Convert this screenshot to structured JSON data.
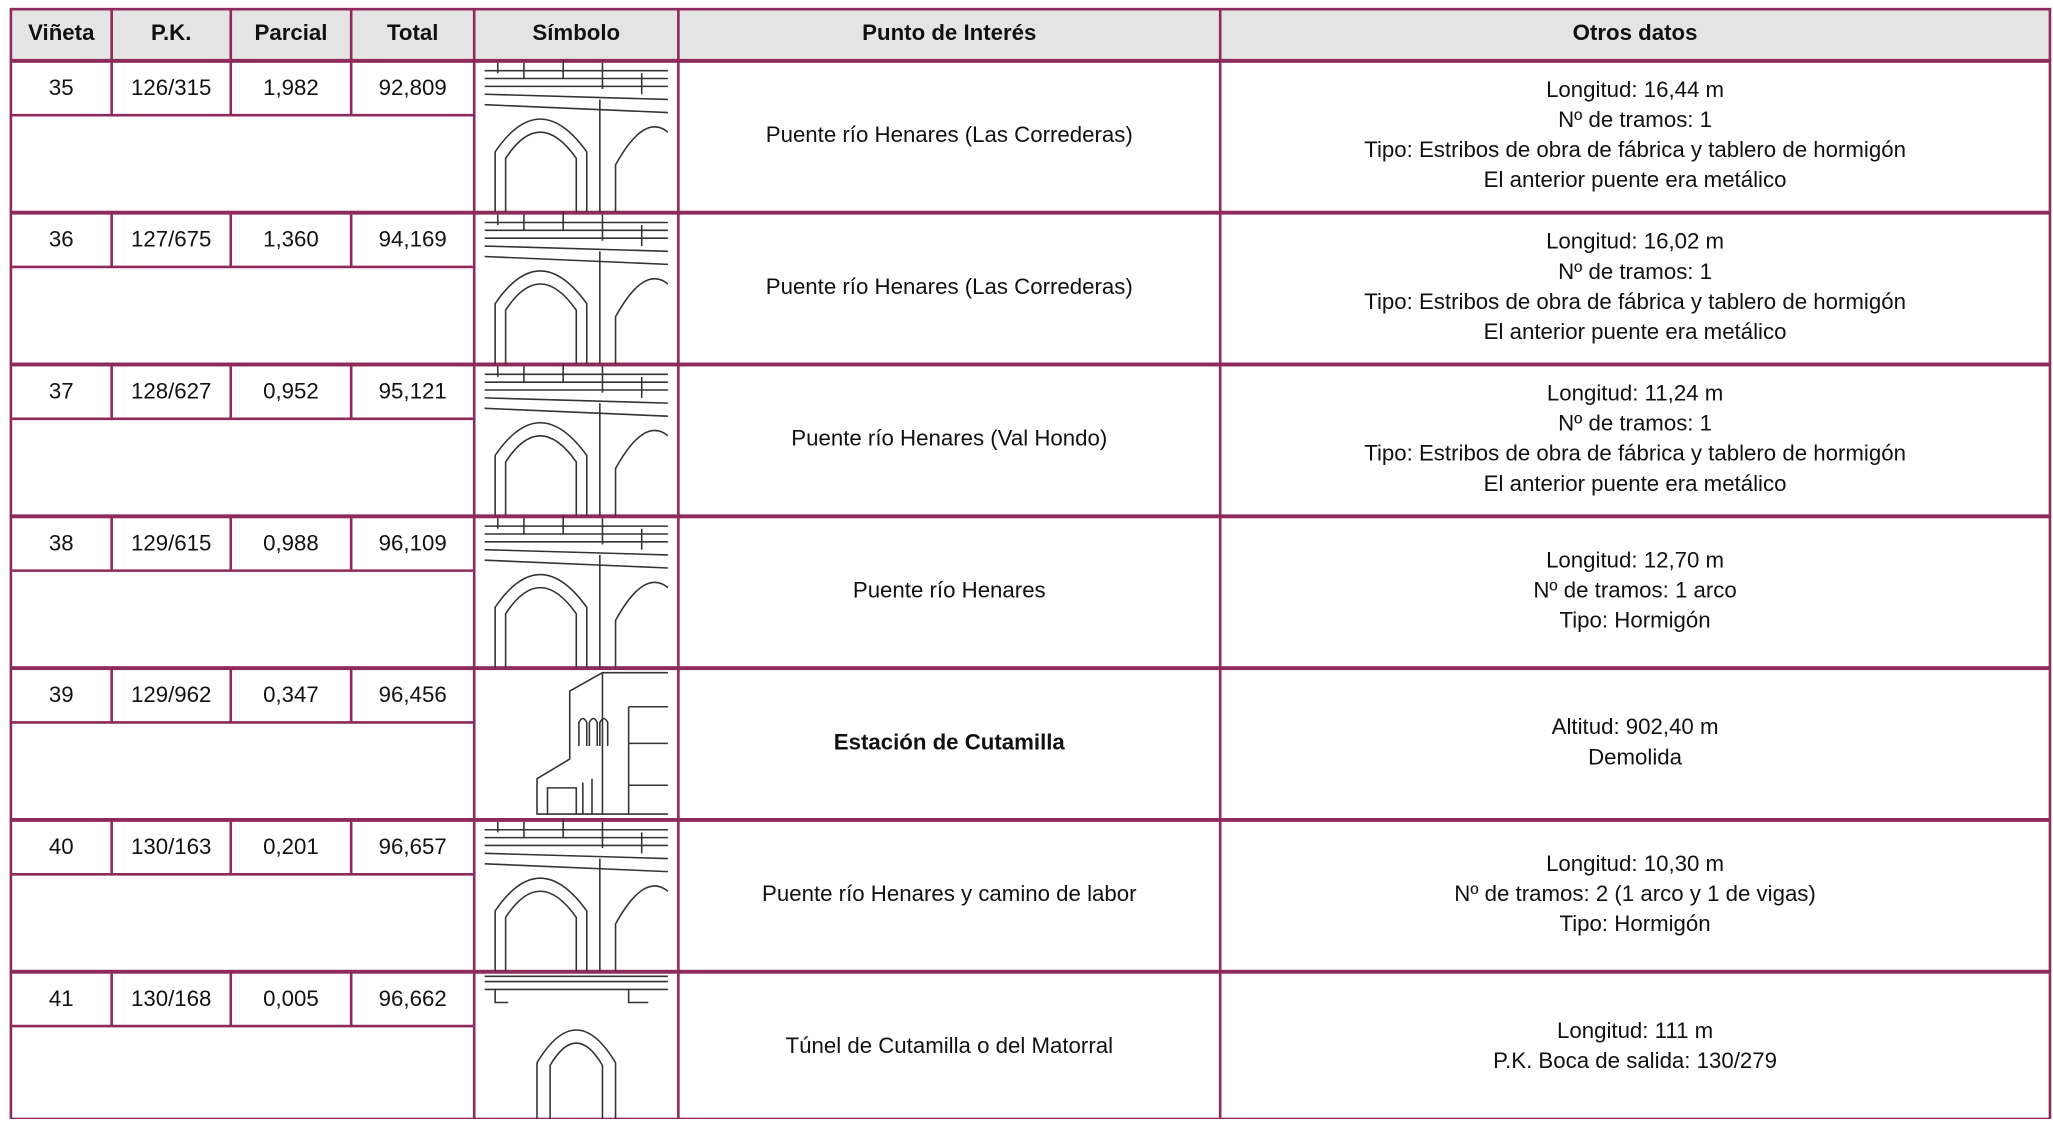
{
  "header": [
    "Viñeta",
    "P.K.",
    "Parcial",
    "Total",
    "Símbolo",
    "Punto de Interés",
    "Otros datos"
  ],
  "rows": [
    {
      "vineta": "35",
      "pk": "126/315",
      "parcial": "1,982",
      "total": "92,809",
      "punto": "Puente río Henares (Las Correderas)",
      "otros": [
        "Longitud: 16,44 m",
        "Nº de tramos: 1",
        "Tipo: Estribos de obra de fábrica y tablero de hormigón",
        "El anterior puente era metálico"
      ]
    },
    {
      "vineta": "36",
      "pk": "127/675",
      "parcial": "1,360",
      "total": "94,169",
      "punto": "Puente río Henares (Las Correderas)",
      "otros": [
        "Longitud: 16,02 m",
        "Nº de tramos: 1",
        "Tipo: Estribos de obra de fábrica y tablero de hormigón",
        "El anterior puente era metálico"
      ]
    },
    {
      "vineta": "37",
      "pk": "128/627",
      "parcial": "0,952",
      "total": "95,121",
      "punto": "Puente río Henares (Val Hondo)",
      "otros": [
        "Longitud: 11,24 m",
        "Nº de tramos: 1",
        "Tipo: Estribos de obra de fábrica y tablero de hormigón",
        "El anterior puente era metálico"
      ]
    },
    {
      "vineta": "38",
      "pk": "129/615",
      "parcial": "0,988",
      "total": "96,109",
      "punto": "Puente río Henares",
      "otros": [
        "Longitud: 12,70 m",
        "Nº de tramos: 1 arco",
        "Tipo: Hormigón"
      ]
    },
    {
      "vineta": "39",
      "pk": "129/962",
      "parcial": "0,347",
      "total": "96,456",
      "punto": "Estación de Cutamilla",
      "bold": true,
      "otros": [
        "Altitud: 902,40 m",
        "Demolida"
      ]
    },
    {
      "vineta": "40",
      "pk": "130/163",
      "parcial": "0,201",
      "total": "96,657",
      "punto": "Puente río Henares y camino de labor",
      "otros": [
        "Longitud: 10,30 m",
        "Nº de tramos: 2 (1 arco y 1 de vigas)",
        "Tipo: Hormigón"
      ]
    },
    {
      "vineta": "41",
      "pk": "130/168",
      "parcial": "0,005",
      "total": "96,662",
      "punto": "Túnel de Cutamilla o del Matorral",
      "otros": [
        "Longitud: 111 m",
        "P.K. Boca de salida: 130/279"
      ]
    }
  ]
}
